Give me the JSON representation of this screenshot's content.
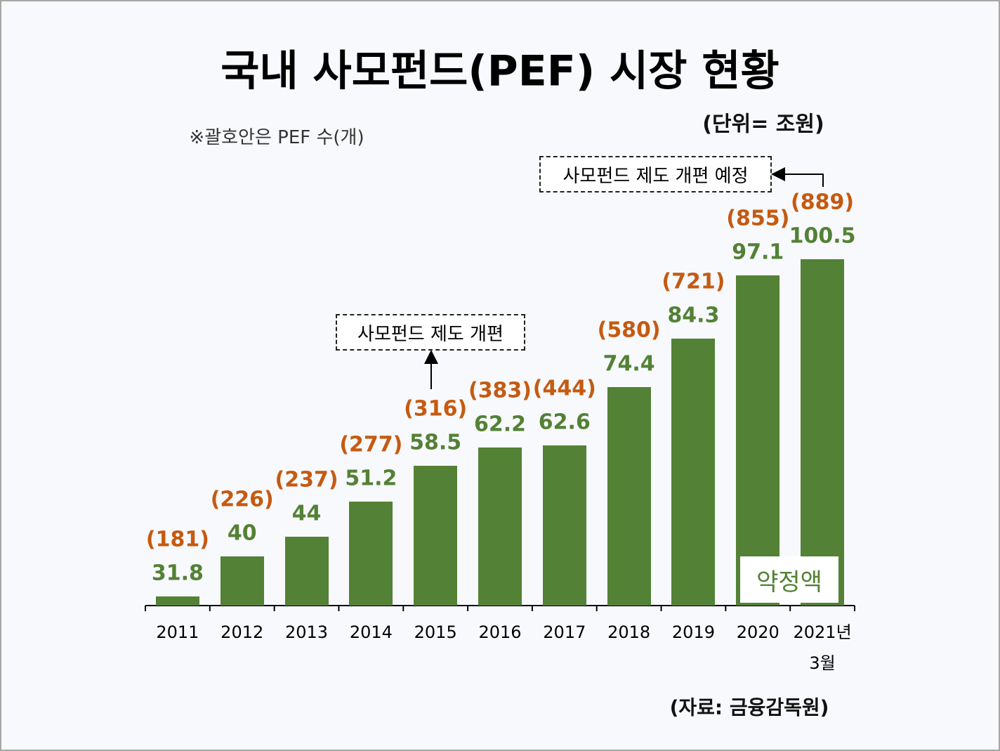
{
  "chart_data": {
    "type": "bar",
    "title": "국내 사모펀드(PEF) 시장 현황",
    "subtitle": "(단위= 조원)",
    "note": "※괄호안은 PEF 수(개)",
    "source": "(자료: 금융감독원)",
    "categories": [
      "2011",
      "2012",
      "2013",
      "2014",
      "2015",
      "2016",
      "2017",
      "2018",
      "2019",
      "2020",
      "2021년\n3월"
    ],
    "series": [
      {
        "name": "약정액",
        "color": "#538135",
        "values": [
          31.8,
          40,
          44,
          51.2,
          58.5,
          62.2,
          62.6,
          74.4,
          84.3,
          97.1,
          100.5
        ]
      }
    ],
    "pef_counts": {
      "color": "#c55a11",
      "values": [
        181,
        226,
        237,
        277,
        316,
        383,
        444,
        580,
        721,
        855,
        889
      ],
      "value_labels": [
        "(181)",
        "(226)",
        "(237)",
        "(277)",
        "(316)",
        "(383)",
        "(444)",
        "(580)",
        "(721)",
        "(855)",
        "(889)"
      ]
    },
    "annotations": [
      "사모펀드 제도 개편",
      "사모펀드 제도 개편 예정"
    ],
    "ylim": [
      30,
      100
    ]
  }
}
